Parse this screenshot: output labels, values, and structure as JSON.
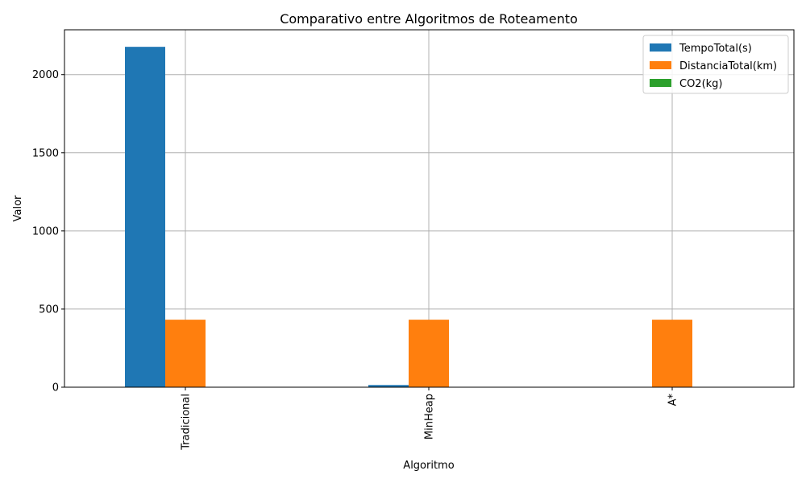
{
  "chart_data": {
    "type": "bar",
    "title": "Comparativo entre Algoritmos de Roteamento",
    "xlabel": "Algoritmo",
    "ylabel": "Valor",
    "categories": [
      "Tradicional",
      "MinHeap",
      "A*"
    ],
    "series": [
      {
        "name": "TempoTotal(s)",
        "color": "#1f77b4",
        "values": [
          2178,
          14,
          1
        ]
      },
      {
        "name": "DistanciaTotal(km)",
        "color": "#ff7f0e",
        "values": [
          432,
          432,
          432
        ]
      },
      {
        "name": "CO2(kg)",
        "color": "#2ca02c",
        "values": [
          0.5,
          0.5,
          0.5
        ]
      }
    ],
    "ylim": [
      0,
      2287
    ],
    "yticks": [
      0,
      500,
      1000,
      1500,
      2000
    ],
    "grid": true,
    "legend": "top-right"
  }
}
